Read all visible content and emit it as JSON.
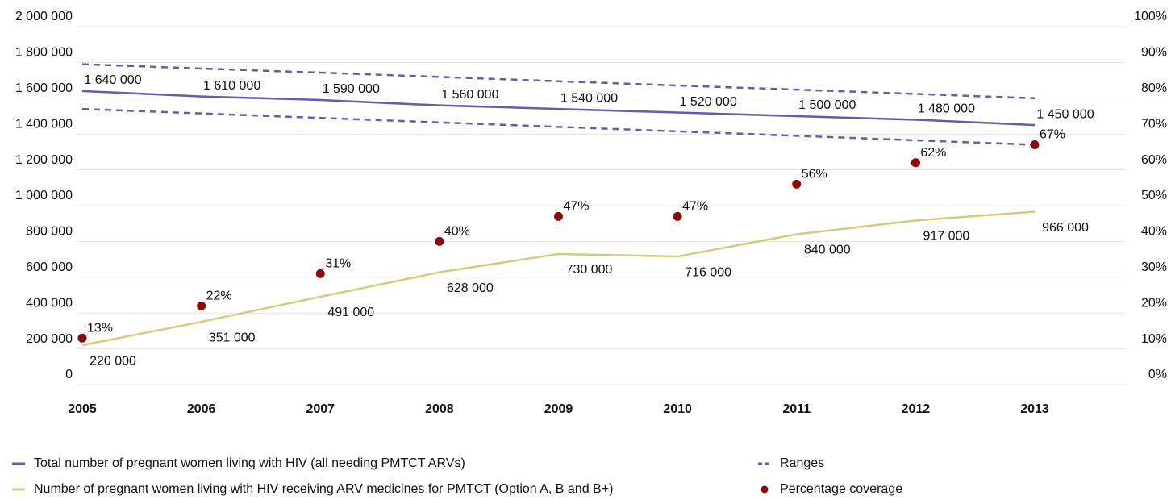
{
  "chart_data": {
    "type": "line",
    "categories": [
      "2005",
      "2006",
      "2007",
      "2008",
      "2009",
      "2010",
      "2011",
      "2012",
      "2013"
    ],
    "ylim": [
      0,
      2000000
    ],
    "yticks": [
      0,
      {
        "value": 200000,
        "label": "200 000"
      },
      {
        "value": 400000,
        "label": "400 000"
      },
      {
        "value": 600000,
        "label": "600 000"
      },
      {
        "value": 800000,
        "label": "800 000"
      },
      {
        "value": 1000000,
        "label": "1 000 000"
      },
      {
        "value": 1200000,
        "label": "1 200 000"
      },
      {
        "value": 1400000,
        "label": "1 400 000"
      },
      {
        "value": 1600000,
        "label": "1 600 000"
      },
      {
        "value": 1800000,
        "label": "1 800 000"
      },
      {
        "value": 2000000,
        "label": "2 000 000"
      }
    ],
    "y2lim": [
      0,
      100
    ],
    "y2ticks": [
      {
        "value": 0,
        "label": "0%"
      },
      {
        "value": 10,
        "label": "10%"
      },
      {
        "value": 20,
        "label": "20%"
      },
      {
        "value": 30,
        "label": "30%"
      },
      {
        "value": 40,
        "label": "40%"
      },
      {
        "value": 50,
        "label": "50%"
      },
      {
        "value": 60,
        "label": "60%"
      },
      {
        "value": 70,
        "label": "70%"
      },
      {
        "value": 80,
        "label": "80%"
      },
      {
        "value": 90,
        "label": "90%"
      },
      {
        "value": 100,
        "label": "100%"
      }
    ],
    "grid": true,
    "series": [
      {
        "name": "Total number of pregnant women living with HIV (all needing PMTCT ARVs)",
        "color": "#6a5aa8",
        "style": "solid",
        "values": [
          1640000,
          1610000,
          1590000,
          1560000,
          1540000,
          1520000,
          1500000,
          1480000,
          1450000
        ],
        "value_labels": [
          "1 640 000",
          "1 610 000",
          "1 590 000",
          "1 560 000",
          "1 540 000",
          "1 520 000",
          "1 500 000",
          "1 480 000",
          "1 450 000"
        ]
      },
      {
        "name": "Number of pregnant women living with HIV receiving ARV medicines for PMTCT (Option A, B and B+)",
        "color": "#d4cc7a",
        "style": "solid",
        "values": [
          220000,
          351000,
          491000,
          628000,
          730000,
          716000,
          840000,
          917000,
          966000
        ],
        "value_labels": [
          "220 000",
          "351 000",
          "491 000",
          "628 000",
          "730 000",
          "716 000",
          "840 000",
          "917 000",
          "966 000"
        ]
      },
      {
        "name": "Ranges",
        "color": "#6a5aa8",
        "style": "dashed",
        "values": [
          1790000,
          1766000,
          1743000,
          1719000,
          1695000,
          1671000,
          1648000,
          1624000,
          1600000
        ],
        "lower": [
          1540000,
          1515000,
          1490000,
          1465000,
          1440000,
          1415000,
          1390000,
          1365000,
          1340000
        ]
      },
      {
        "name": "Percentage coverage",
        "color": "#8b0a0a",
        "style": "points",
        "axis": "y2",
        "values": [
          13,
          22,
          31,
          40,
          47,
          47,
          56,
          62,
          67
        ],
        "value_labels": [
          "13%",
          "22%",
          "31%",
          "40%",
          "47%",
          "47%",
          "56%",
          "62%",
          "67%"
        ]
      }
    ]
  }
}
